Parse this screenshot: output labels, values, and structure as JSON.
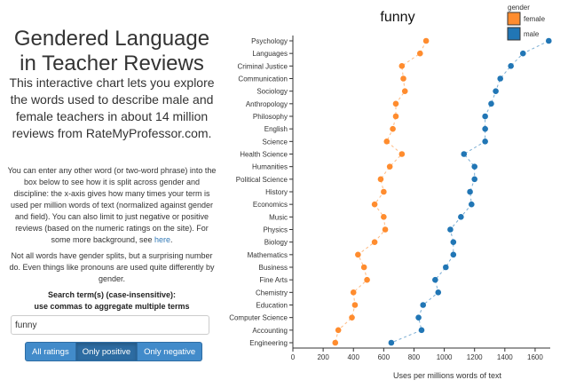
{
  "left_panel": {
    "title": "Gendered Language in Teacher Reviews",
    "intro": "This interactive chart lets you explore the words used to describe male and female teachers in about 14 million reviews from RateMyProfessor.com.",
    "description": "You can enter any other word (or two-word phrase) into the box below to see how it is split across gender and discipline: the x-axis gives how many times your term is used per million words of text (normalized against gender and field). You can also limit to just negative or positive reviews (based on the numeric ratings on the site). For some more background, see",
    "description_link": "here",
    "description_end": ".",
    "note": "Not all words have gender splits, but a surprising number do. Even things like pronouns are used quite differently by gender.",
    "search_label_line1": "Search term(s) (case-insensitive):",
    "search_label_line2": "use commas to aggregate multiple terms",
    "search_value": "funny",
    "filters": [
      {
        "label": "All ratings",
        "active": false
      },
      {
        "label": "Only positive",
        "active": true
      },
      {
        "label": "Only negative",
        "active": false
      }
    ]
  },
  "chart_data": {
    "type": "scatter",
    "title": "funny",
    "xlabel": "Uses per millions words of text",
    "ylabel": "",
    "xlim": [
      0,
      1700
    ],
    "xticks": [
      0,
      200,
      400,
      600,
      800,
      1000,
      1200,
      1400,
      1600
    ],
    "grid": false,
    "legend": {
      "title": "gender",
      "position": "top-right",
      "entries": [
        {
          "name": "female",
          "color": "#ff8c2e"
        },
        {
          "name": "male",
          "color": "#2176b5"
        }
      ]
    },
    "categories": [
      "Psychology",
      "Languages",
      "Criminal Justice",
      "Communication",
      "Sociology",
      "Anthropology",
      "Philosophy",
      "English",
      "Science",
      "Health Science",
      "Humanities",
      "Political Science",
      "History",
      "Economics",
      "Music",
      "Physics",
      "Biology",
      "Mathematics",
      "Business",
      "Fine Arts",
      "Chemistry",
      "Education",
      "Computer Science",
      "Accounting",
      "Engineering"
    ],
    "series": [
      {
        "name": "female",
        "color": "#ff8c2e",
        "values": [
          880,
          840,
          720,
          730,
          740,
          680,
          680,
          660,
          620,
          720,
          640,
          580,
          600,
          540,
          600,
          610,
          540,
          430,
          470,
          490,
          400,
          410,
          390,
          300,
          280
        ]
      },
      {
        "name": "male",
        "color": "#2176b5",
        "values": [
          1690,
          1520,
          1440,
          1370,
          1340,
          1310,
          1270,
          1270,
          1270,
          1130,
          1200,
          1200,
          1170,
          1180,
          1110,
          1040,
          1060,
          1060,
          1010,
          940,
          960,
          860,
          830,
          850,
          650
        ]
      }
    ]
  }
}
